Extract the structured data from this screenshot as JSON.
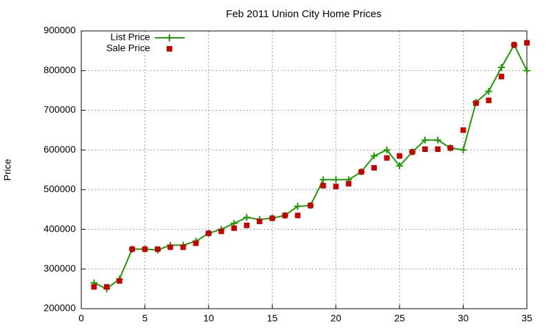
{
  "chart_data": {
    "type": "line",
    "title": "Feb 2011 Union City Home Prices",
    "y_label": "Price",
    "x": [
      1,
      2,
      3,
      4,
      5,
      6,
      7,
      8,
      9,
      10,
      11,
      12,
      13,
      14,
      15,
      16,
      17,
      18,
      19,
      20,
      21,
      22,
      23,
      24,
      25,
      26,
      27,
      28,
      29,
      30,
      31,
      32,
      33,
      34,
      35
    ],
    "series": [
      {
        "name": "List Price",
        "color": "#1a9a00",
        "marker": "plus",
        "line": true,
        "values": [
          265000,
          250000,
          275000,
          350000,
          350000,
          348000,
          360000,
          360000,
          370000,
          390000,
          400000,
          415000,
          430000,
          425000,
          428000,
          435000,
          458000,
          460000,
          525000,
          525000,
          525000,
          545000,
          585000,
          600000,
          560000,
          595000,
          625000,
          625000,
          605000,
          600000,
          720000,
          748000,
          808000,
          865000,
          800000
        ]
      },
      {
        "name": "Sale Price",
        "color": "#c80000",
        "marker": "square",
        "line": false,
        "values": [
          255000,
          255000,
          270000,
          350000,
          350000,
          350000,
          355000,
          355000,
          365000,
          390000,
          395000,
          403000,
          410000,
          420000,
          428000,
          435000,
          435000,
          460000,
          510000,
          508000,
          515000,
          545000,
          555000,
          580000,
          585000,
          595000,
          602000,
          602000,
          605000,
          650000,
          718000,
          725000,
          785000,
          865000,
          870000
        ]
      }
    ],
    "xlim": [
      0,
      35
    ],
    "xticks": [
      0,
      5,
      10,
      15,
      20,
      25,
      30,
      35
    ],
    "ylim": [
      200000,
      900000
    ],
    "yticks": [
      200000,
      300000,
      400000,
      500000,
      600000,
      700000,
      800000,
      900000
    ],
    "grid": true,
    "legend": "top-left"
  }
}
